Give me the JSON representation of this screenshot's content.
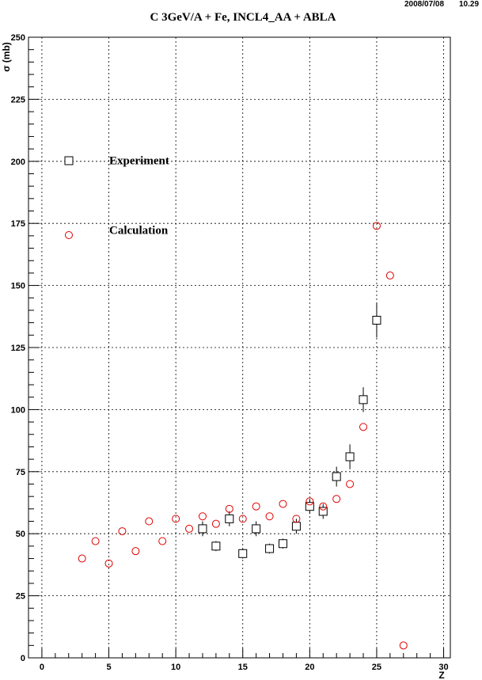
{
  "header": {
    "date": "2008/07/08",
    "time": "10.29"
  },
  "chart_data": {
    "type": "scatter",
    "title": "C 3GeV/A + Fe, INCL4_AA + ABLA",
    "xlabel": "Z",
    "ylabel": "σ (mb)",
    "xlim": [
      -1,
      30.5
    ],
    "ylim": [
      0,
      250
    ],
    "x_ticks": [
      0,
      5,
      10,
      15,
      20,
      25,
      30
    ],
    "x_tick_labels": [
      "0",
      "5",
      "10",
      "15",
      "20",
      "25",
      "30"
    ],
    "y_ticks": [
      0,
      25,
      50,
      75,
      100,
      125,
      150,
      175,
      200,
      225,
      250
    ],
    "y_tick_labels": [
      "0",
      "25",
      "50",
      "75",
      "100",
      "125",
      "150",
      "175",
      "200",
      "225",
      "250"
    ],
    "grid": true,
    "legend_entries": [
      {
        "label": "Experiment",
        "marker": "open-square",
        "color": "#000000"
      },
      {
        "label": "Calculation",
        "marker": "open-circle",
        "color": "#e00000"
      }
    ],
    "series": [
      {
        "name": "Experiment",
        "color": "#000000",
        "marker": "open-square",
        "points": [
          {
            "x": 12,
            "y": 52,
            "err": 3
          },
          {
            "x": 13,
            "y": 45,
            "err": 2
          },
          {
            "x": 14,
            "y": 56,
            "err": 3
          },
          {
            "x": 15,
            "y": 42,
            "err": 2
          },
          {
            "x": 16,
            "y": 52,
            "err": 3
          },
          {
            "x": 17,
            "y": 44,
            "err": 2
          },
          {
            "x": 18,
            "y": 46,
            "err": 2
          },
          {
            "x": 19,
            "y": 53,
            "err": 3
          },
          {
            "x": 20,
            "y": 61,
            "err": 3
          },
          {
            "x": 21,
            "y": 59,
            "err": 3
          },
          {
            "x": 22,
            "y": 73,
            "err": 4
          },
          {
            "x": 23,
            "y": 81,
            "err": 5
          },
          {
            "x": 24,
            "y": 104,
            "err": 5
          },
          {
            "x": 25,
            "y": 136,
            "err": 7
          }
        ]
      },
      {
        "name": "Calculation",
        "color": "#e00000",
        "marker": "open-circle",
        "points": [
          {
            "x": 3,
            "y": 40
          },
          {
            "x": 4,
            "y": 47
          },
          {
            "x": 5,
            "y": 38
          },
          {
            "x": 6,
            "y": 51
          },
          {
            "x": 7,
            "y": 43
          },
          {
            "x": 8,
            "y": 55
          },
          {
            "x": 9,
            "y": 47
          },
          {
            "x": 10,
            "y": 56
          },
          {
            "x": 11,
            "y": 52
          },
          {
            "x": 12,
            "y": 57
          },
          {
            "x": 13,
            "y": 54
          },
          {
            "x": 14,
            "y": 60
          },
          {
            "x": 15,
            "y": 56
          },
          {
            "x": 16,
            "y": 61
          },
          {
            "x": 17,
            "y": 57
          },
          {
            "x": 18,
            "y": 62
          },
          {
            "x": 19,
            "y": 56
          },
          {
            "x": 20,
            "y": 63
          },
          {
            "x": 21,
            "y": 61
          },
          {
            "x": 22,
            "y": 64
          },
          {
            "x": 23,
            "y": 70
          },
          {
            "x": 24,
            "y": 93
          },
          {
            "x": 25,
            "y": 174
          },
          {
            "x": 26,
            "y": 154
          },
          {
            "x": 27,
            "y": 5
          }
        ]
      }
    ]
  }
}
